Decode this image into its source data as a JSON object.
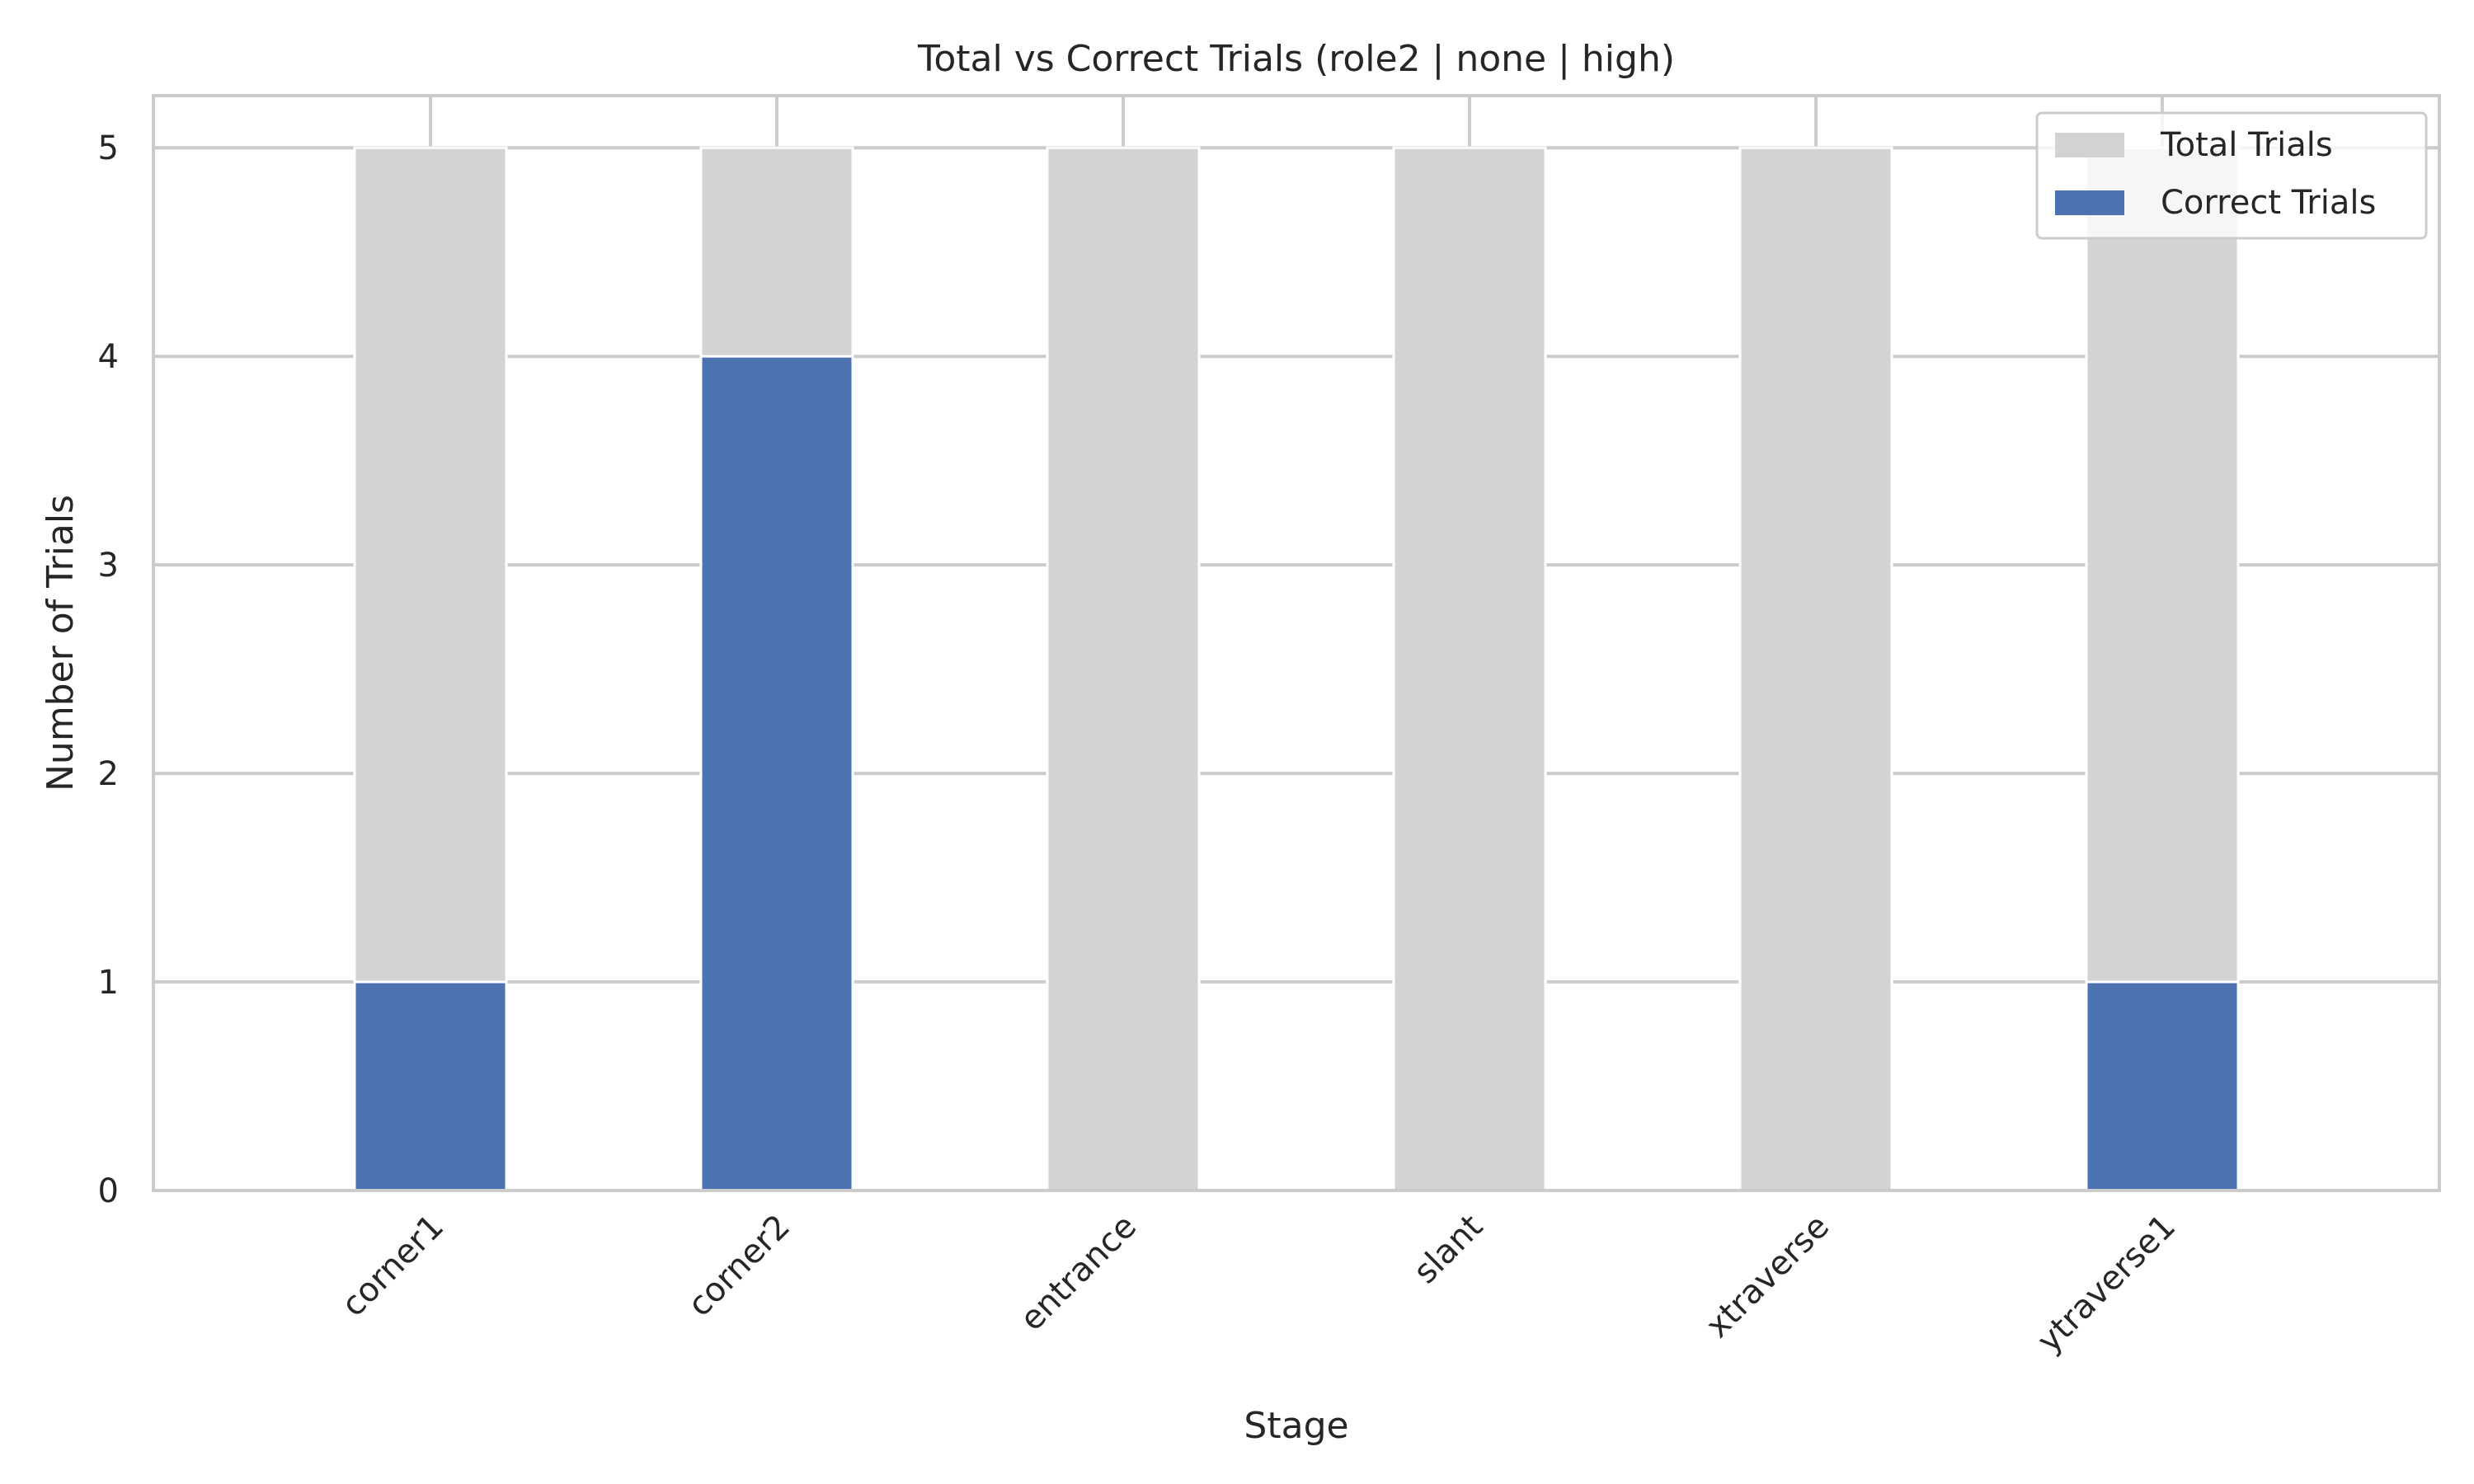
{
  "chart_data": {
    "type": "bar",
    "title": "Total vs Correct Trials (role2 | none | high)",
    "xlabel": "Stage",
    "ylabel": "Number of Trials",
    "categories": [
      "corner1",
      "corner2",
      "entrance",
      "slant",
      "xtraverse",
      "ytraverse1"
    ],
    "series": [
      {
        "name": "Total Trials",
        "values": [
          5,
          5,
          5,
          5,
          5,
          5
        ],
        "color": "#d3d3d3"
      },
      {
        "name": "Correct Trials",
        "values": [
          1,
          4,
          0,
          0,
          0,
          1
        ],
        "color": "#4c72b0"
      }
    ],
    "ylim": [
      0,
      5.25
    ],
    "yticks": [
      0,
      1,
      2,
      3,
      4,
      5
    ],
    "grid": true,
    "legend_position": "top-right",
    "overlay": true
  }
}
